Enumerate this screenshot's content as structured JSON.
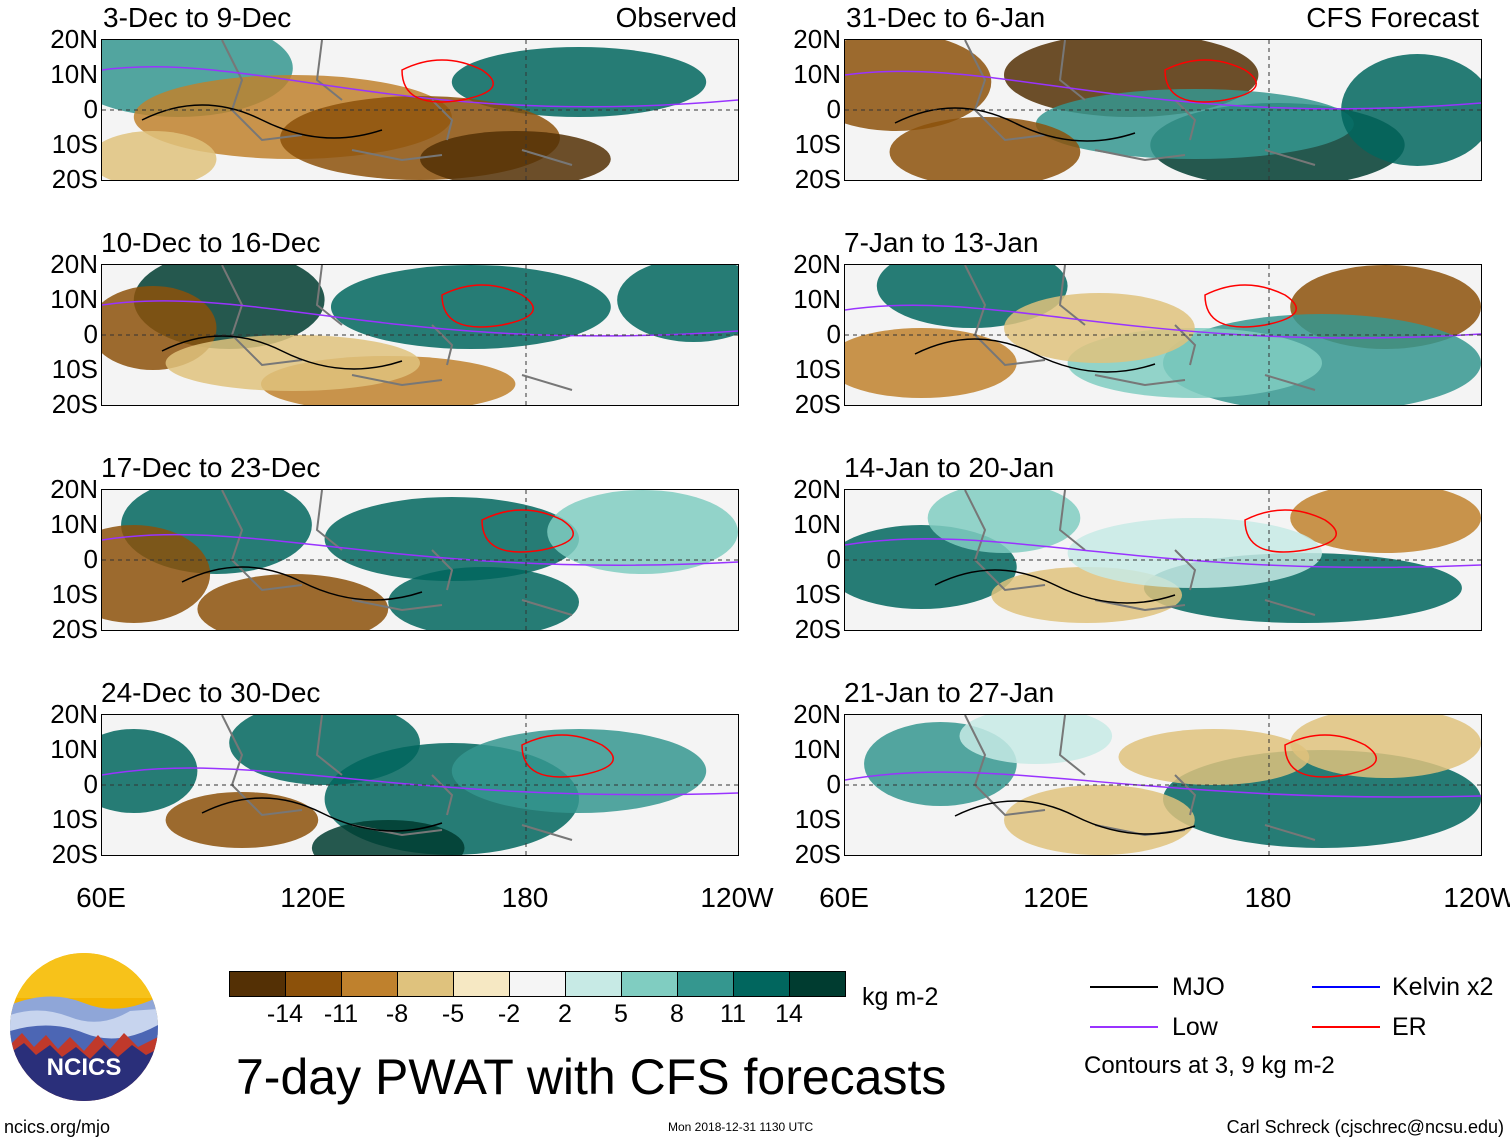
{
  "panels": [
    {
      "title": "3-Dec to 9-Dec",
      "tag": "Observed"
    },
    {
      "title": "31-Dec to 6-Jan",
      "tag": "CFS Forecast"
    },
    {
      "title": "10-Dec to 16-Dec"
    },
    {
      "title": "7-Jan to 13-Jan"
    },
    {
      "title": "17-Dec to 23-Dec"
    },
    {
      "title": "14-Jan to 20-Jan"
    },
    {
      "title": "24-Dec to 30-Dec"
    },
    {
      "title": "21-Jan to 27-Jan"
    }
  ],
  "lat_labels": [
    "20N",
    "10N",
    "0",
    "10S",
    "20S"
  ],
  "lon_labels": [
    "60E",
    "120E",
    "180",
    "120W"
  ],
  "colorbar": {
    "ticks": [
      "-14",
      "-11",
      "-8",
      "-5",
      "-2",
      "2",
      "5",
      "8",
      "11",
      "14"
    ],
    "colors": [
      "#543005",
      "#8c510a",
      "#bf812d",
      "#dfc27d",
      "#f6e8c3",
      "#f5f5f5",
      "#c7eae5",
      "#80cdc1",
      "#35978f",
      "#01665e",
      "#003c30"
    ],
    "units": "kg m-2"
  },
  "legend": {
    "mjo": {
      "label": "MJO",
      "color": "#000000"
    },
    "kelvin": {
      "label": "Kelvin x2",
      "color": "#0000ff"
    },
    "low": {
      "label": "Low",
      "color": "#9933ff"
    },
    "er": {
      "label": "ER",
      "color": "#ff0000"
    },
    "note": "Contours at 3, 9 kg m-2"
  },
  "logo_text": "NCICS",
  "main_title": "7-day PWAT with CFS forecasts",
  "footer": {
    "url": "ncics.org/mjo",
    "timestamp": "Mon 2018-12-31 1130 UTC",
    "credit": "Carl Schreck (cjschrec@ncsu.edu)"
  }
}
